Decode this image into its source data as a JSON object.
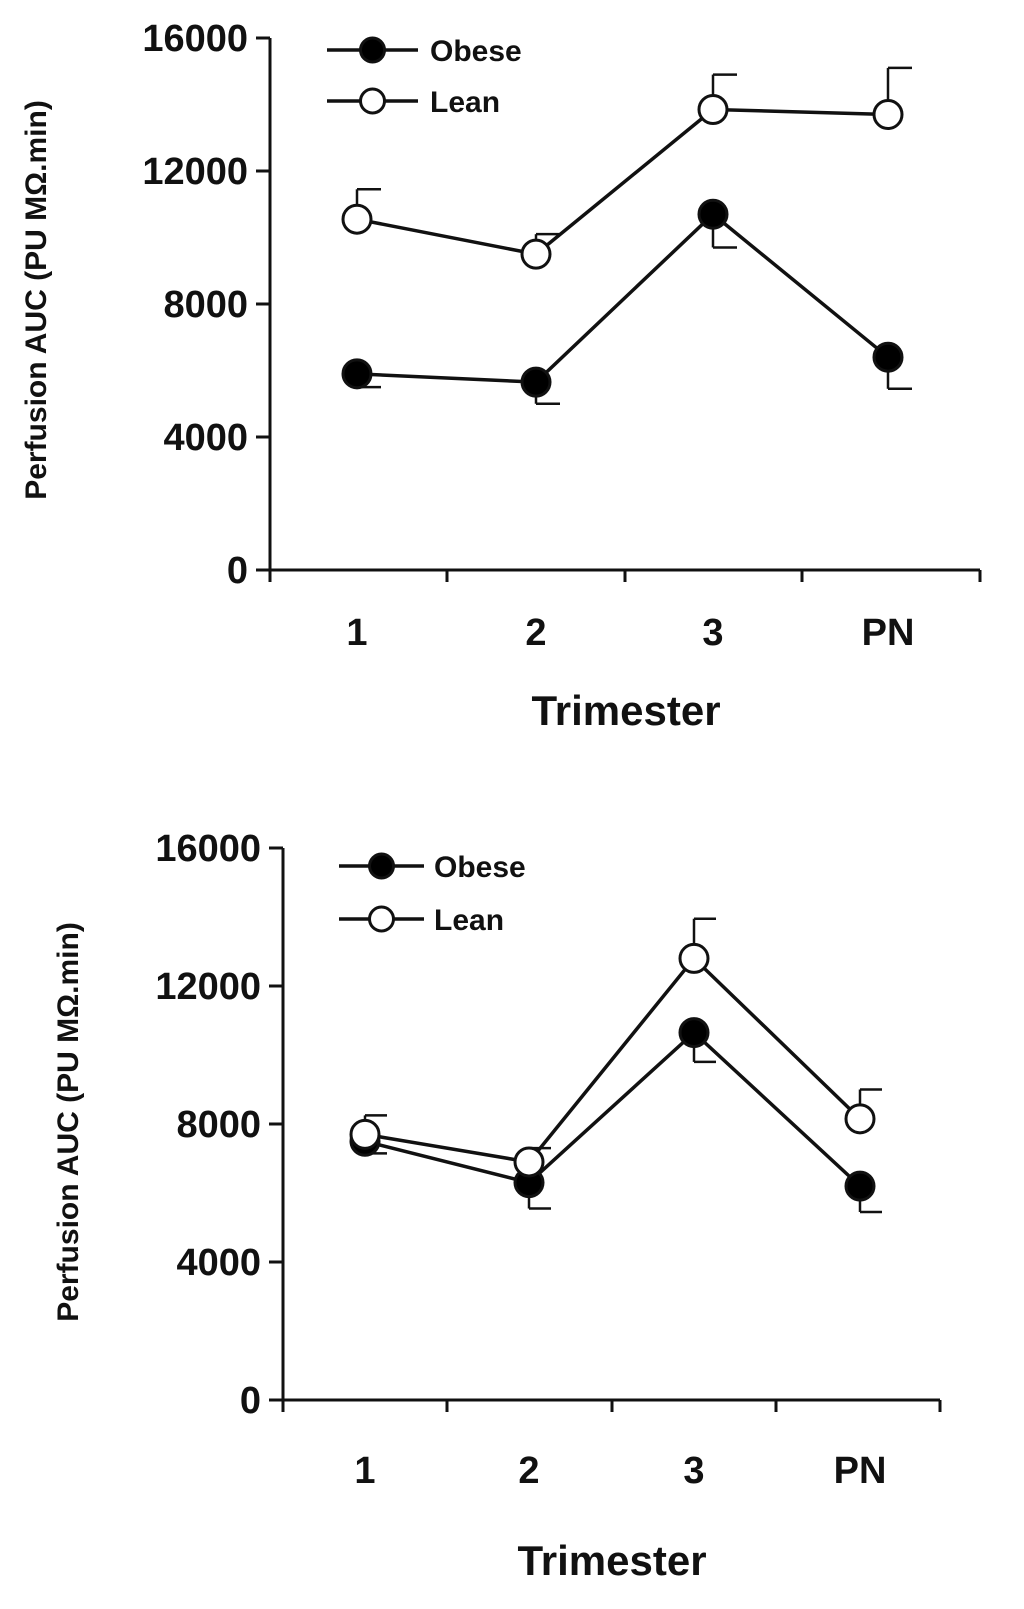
{
  "chart_data": [
    {
      "type": "line",
      "title": "",
      "xlabel": "Trimester",
      "ylabel": "Perfusion AUC (PU MΩ.min)",
      "categories": [
        "1",
        "2",
        "3",
        "PN"
      ],
      "ylim": [
        0,
        16000
      ],
      "yticks": [
        "0",
        "4000",
        "8000",
        "12000",
        "16000"
      ],
      "grid": false,
      "legend_position": "top-left",
      "series": [
        {
          "name": "Obese",
          "marker": "filled-circle",
          "values": [
            5900,
            5650,
            10700,
            6400
          ],
          "error": [
            400,
            650,
            1000,
            950
          ]
        },
        {
          "name": "Lean",
          "marker": "open-circle",
          "values": [
            10550,
            9500,
            13850,
            13700
          ],
          "error": [
            900,
            600,
            1050,
            1400
          ]
        }
      ]
    },
    {
      "type": "line",
      "title": "",
      "xlabel": "Trimester",
      "ylabel": "Perfusion AUC (PU MΩ.min)",
      "categories": [
        "1",
        "2",
        "3",
        "PN"
      ],
      "ylim": [
        0,
        16000
      ],
      "yticks": [
        "0",
        "4000",
        "8000",
        "12000",
        "16000"
      ],
      "grid": false,
      "legend_position": "top-left",
      "series": [
        {
          "name": "Obese",
          "marker": "filled-circle",
          "values": [
            7500,
            6300,
            10650,
            6200
          ],
          "error": [
            350,
            750,
            850,
            750
          ]
        },
        {
          "name": "Lean",
          "marker": "open-circle",
          "values": [
            7700,
            6900,
            12800,
            8150
          ],
          "error": [
            550,
            400,
            1150,
            850
          ]
        }
      ]
    }
  ],
  "colors": {
    "line": "#111111",
    "filled_marker": "#000000",
    "open_marker_fill": "#ffffff"
  }
}
